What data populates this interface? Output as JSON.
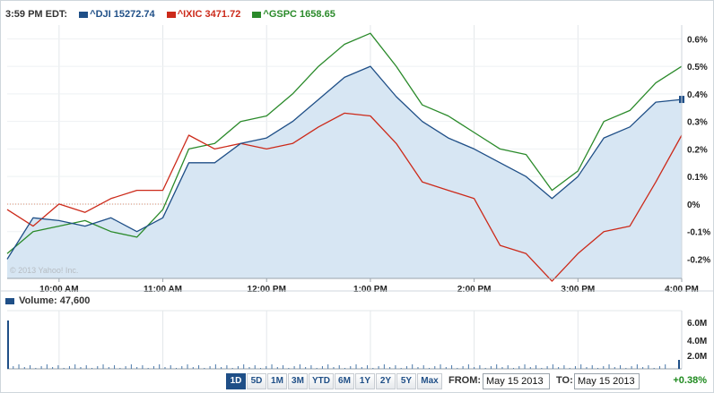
{
  "legend": {
    "time": "3:59 PM EDT:",
    "items": [
      {
        "label": "^DJI 15272.74",
        "color": "#1f4f87"
      },
      {
        "label": "^IXIC 3471.72",
        "color": "#cc2a1a"
      },
      {
        "label": "^GSPC 1658.65",
        "color": "#2a8a2a"
      }
    ]
  },
  "watermark": "© 2013 Yahoo! Inc.",
  "volume": {
    "label": "Volume: 47,600",
    "ticks": [
      "6.0M",
      "4.0M",
      "2.0M"
    ]
  },
  "controls": {
    "ranges": [
      "1D",
      "5D",
      "1M",
      "3M",
      "YTD",
      "6M",
      "1Y",
      "2Y",
      "5Y",
      "Max"
    ],
    "active": "1D",
    "from_label": "FROM:",
    "from_value": "May 15 2013",
    "to_label": "TO:",
    "to_value": "May 15 2013",
    "change": "+0.38%"
  },
  "chart_data": {
    "type": "line",
    "x": [
      "9:30",
      "9:45",
      "10:00",
      "10:15",
      "10:30",
      "10:45",
      "11:00",
      "11:15",
      "11:30",
      "11:45",
      "12:00",
      "12:15",
      "12:30",
      "12:45",
      "13:00",
      "13:15",
      "13:30",
      "13:45",
      "14:00",
      "14:15",
      "14:30",
      "14:45",
      "15:00",
      "15:15",
      "15:30",
      "15:45",
      "16:00"
    ],
    "xticks": [
      "10:00 AM",
      "11:00 AM",
      "12:00 PM",
      "1:00 PM",
      "2:00 PM",
      "3:00 PM",
      "4:00 PM"
    ],
    "yticks": [
      "0.6%",
      "0.5%",
      "0.4%",
      "0.3%",
      "0.2%",
      "0.1%",
      "0%",
      "-0.1%",
      "-0.2%"
    ],
    "ylim": [
      -0.27,
      0.65
    ],
    "series": [
      {
        "name": "^DJI",
        "color": "#1f4f87",
        "values": [
          -0.2,
          -0.05,
          -0.06,
          -0.08,
          -0.05,
          -0.1,
          -0.05,
          0.15,
          0.15,
          0.22,
          0.24,
          0.3,
          0.38,
          0.46,
          0.5,
          0.39,
          0.3,
          0.24,
          0.2,
          0.15,
          0.1,
          0.02,
          0.1,
          0.24,
          0.28,
          0.37,
          0.38
        ]
      },
      {
        "name": "^IXIC",
        "color": "#cc2a1a",
        "values": [
          -0.02,
          -0.08,
          0.0,
          -0.03,
          0.02,
          0.05,
          0.05,
          0.25,
          0.2,
          0.22,
          0.2,
          0.22,
          0.28,
          0.33,
          0.32,
          0.22,
          0.08,
          0.05,
          0.02,
          -0.15,
          -0.18,
          -0.28,
          -0.18,
          -0.1,
          -0.08,
          0.08,
          0.25
        ]
      },
      {
        "name": "^GSPC",
        "color": "#2a8a2a",
        "values": [
          -0.18,
          -0.1,
          -0.08,
          -0.06,
          -0.1,
          -0.12,
          -0.02,
          0.2,
          0.22,
          0.3,
          0.32,
          0.4,
          0.5,
          0.58,
          0.62,
          0.5,
          0.36,
          0.32,
          0.26,
          0.2,
          0.18,
          0.05,
          0.12,
          0.3,
          0.34,
          0.44,
          0.5
        ]
      }
    ]
  }
}
